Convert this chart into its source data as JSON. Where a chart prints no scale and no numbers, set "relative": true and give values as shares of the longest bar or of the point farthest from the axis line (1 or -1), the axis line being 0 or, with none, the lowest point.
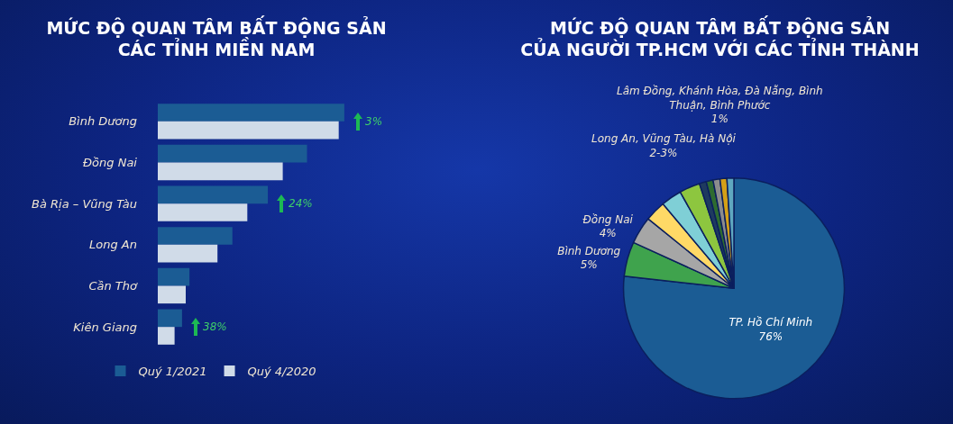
{
  "chart_data": [
    {
      "type": "bar",
      "orientation": "horizontal",
      "relative": true,
      "title": "MỨC ĐỘ QUAN TÂM BẤT ĐỘNG SẢN\nCÁC TỈNH MIỀN NAM",
      "categories": [
        "Bình Dương",
        "Đồng Nai",
        "Bà Rịa – Vũng Tàu",
        "Long An",
        "Cần Thơ",
        "Kiên Giang"
      ],
      "series": [
        {
          "name": "Quý 1/2021",
          "color": "#1b5c94",
          "values": [
            1,
            0.8,
            0.59,
            0.4,
            0.17,
            0.13
          ]
        },
        {
          "name": "Quý 4/2020",
          "color": "#d0dbe8",
          "values": [
            0.97,
            0.67,
            0.48,
            0.32,
            0.15,
            0.09
          ]
        }
      ],
      "annotations": [
        {
          "text": "3%",
          "x": 1,
          "y": "Bình Dương"
        },
        {
          "text": "24%",
          "x": 0.59,
          "y": "Bà Rịa – Vũng Tàu"
        },
        {
          "text": "38%",
          "x": 0.13,
          "y": "Kiên Giang"
        }
      ],
      "legend": "bottom"
    },
    {
      "type": "pie",
      "title": "MỨC ĐỘ QUAN TÂM BẤT ĐỘNG SẢN\nCỦA NGƯỜI TP.HCM VỚI CÁC TỈNH THÀNH",
      "categories": [
        "TP. Hồ Chí Minh",
        "Bình Dương",
        "Đồng Nai",
        null,
        null,
        null,
        null,
        null,
        null,
        null,
        null
      ],
      "values": [
        76,
        5,
        4,
        3,
        3,
        3,
        1,
        1,
        1,
        1,
        1
      ],
      "colors": [
        "#1b5c94",
        "#3fa34d",
        "#a6a6a6",
        "#ffd966",
        "#7fcfd6",
        "#8dc63f",
        "#1e3a5f",
        "#2e6b30",
        "#8c8c8c",
        "#d4a017",
        "#5fa8c0"
      ],
      "value_labels": [
        "76%",
        "5%",
        "4%",
        null,
        null,
        null,
        null,
        null,
        null,
        null,
        null
      ],
      "annotations": [
        "Long An, Vũng Tàu, Hà Nội\n2-3%",
        "Lâm Đồng, Khánh Hòa, Đà Nẵng, Bình\nThuận, Bình Phước\n1%"
      ]
    }
  ]
}
